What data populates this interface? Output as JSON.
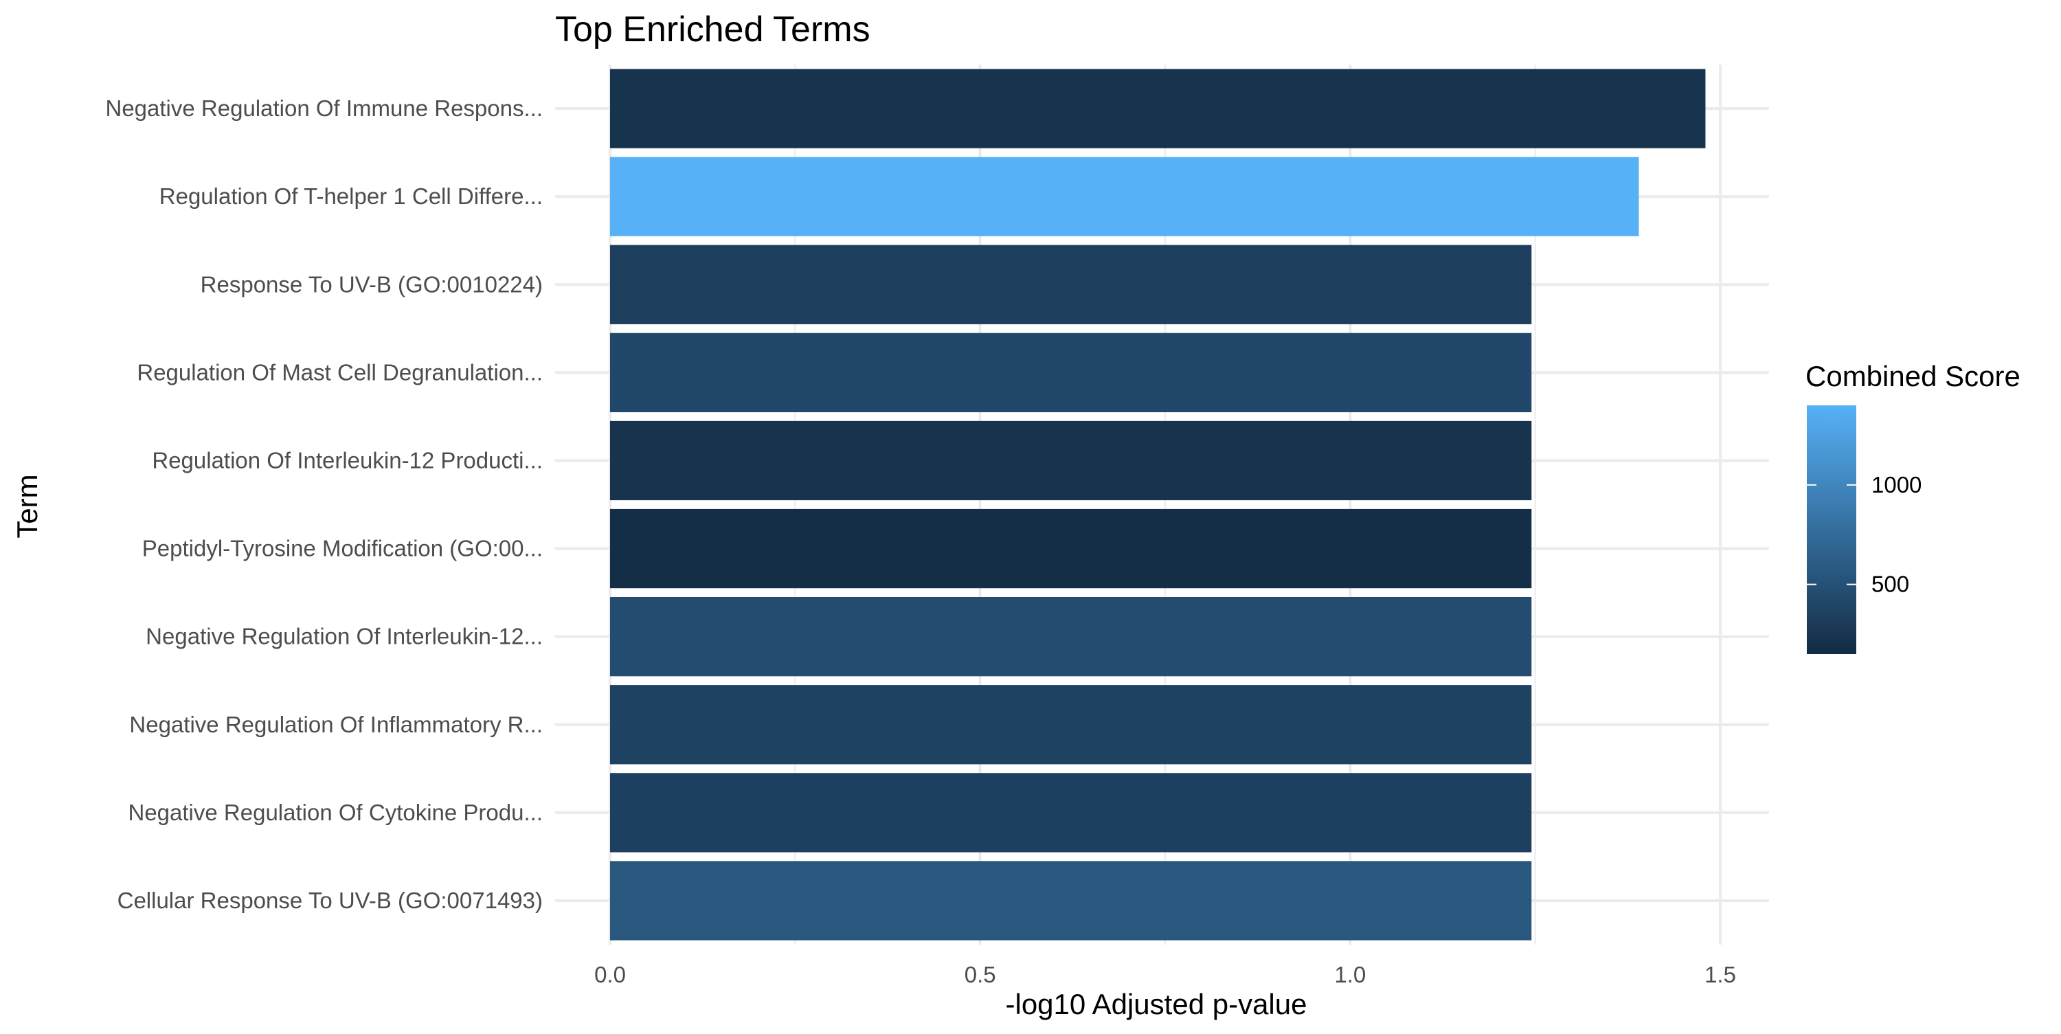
{
  "chart_data": {
    "type": "bar",
    "orientation": "horizontal",
    "title": "Top Enriched Terms",
    "xlabel": "-log10 Adjusted p-value",
    "ylabel": "Term",
    "xlim": [
      0,
      1.5
    ],
    "xticks": [
      0.0,
      0.5,
      1.0,
      1.5
    ],
    "xtick_labels": [
      "0.0",
      "0.5",
      "1.0",
      "1.5"
    ],
    "grid": true,
    "legend": {
      "title": "Combined Score",
      "placement": "right",
      "ticks": [
        500,
        1000
      ],
      "tick_labels": [
        "500",
        "1000"
      ],
      "range": [
        150,
        1400
      ],
      "color_low": "#132b43",
      "color_high": "#56b1f7"
    },
    "categories": [
      "Negative Regulation Of Immune Respons...",
      "Regulation Of T-helper 1 Cell Differe...",
      "Response To UV-B (GO:0010224)",
      "Regulation Of Mast Cell Degranulation...",
      "Regulation Of Interleukin-12 Producti...",
      "Peptidyl-Tyrosine Modification (GO:00...",
      "Negative Regulation Of Interleukin-12...",
      "Negative Regulation Of Inflammatory R...",
      "Negative Regulation Of Cytokine Produ...",
      "Cellular Response To UV-B (GO:0071493)"
    ],
    "values": [
      1.48,
      1.39,
      1.245,
      1.245,
      1.245,
      1.245,
      1.245,
      1.245,
      1.245,
      1.245
    ],
    "combined_scores": [
      230,
      1400,
      330,
      420,
      220,
      180,
      460,
      360,
      350,
      560
    ]
  }
}
